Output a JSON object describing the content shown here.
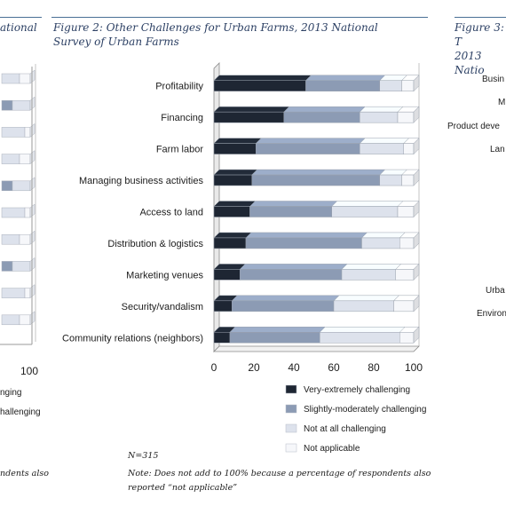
{
  "left_panel": {
    "title_fragment": "ational",
    "tick_label": "100",
    "legend_fragments": [
      "nging",
      "hallenging"
    ],
    "note_fragment": "ndents also"
  },
  "right_panel": {
    "title_line1": "Figure 3: T",
    "title_line2": "2013 Natio",
    "labels": [
      "Busin",
      "M",
      "Product deve",
      "Lan",
      "Urba",
      "Environ"
    ]
  },
  "figure2": {
    "title": "Figure 2: Other Challenges for Urban Farms, 2013 National Survey of Urban Farms"
  },
  "notes": {
    "n": "N=315",
    "note": "Note: Does not add to 100% because a percentage of respondents also reported “not applicable”"
  },
  "chart_data": {
    "type": "bar",
    "orientation": "horizontal",
    "stacked": true,
    "title": "Figure 2: Other Challenges for Urban Farms, 2013 National Survey of Urban Farms",
    "categories": [
      "Profitability",
      "Financing",
      "Farm labor",
      "Managing business activities",
      "Access to land",
      "Distribution & logistics",
      "Marketing venues",
      "Security/vandalism",
      "Community relations (neighbors)"
    ],
    "series": [
      {
        "name": "Very-extremely challenging",
        "color": "#1e2633",
        "values": [
          46,
          35,
          21,
          19,
          18,
          16,
          13,
          9,
          8
        ]
      },
      {
        "name": "Slightly-moderately challenging",
        "color": "#8c9bb4",
        "values": [
          37,
          38,
          52,
          64,
          41,
          58,
          51,
          51,
          45
        ]
      },
      {
        "name": "Not at all challenging",
        "color": "#dde2ec",
        "values": [
          11,
          19,
          22,
          11,
          33,
          19,
          27,
          30,
          40
        ]
      },
      {
        "name": "Not applicable",
        "color": "#f6f7fa",
        "values": [
          6,
          8,
          5,
          6,
          8,
          7,
          9,
          10,
          7
        ]
      }
    ],
    "xlim": [
      0,
      100
    ],
    "xticks": [
      0,
      20,
      40,
      60,
      80,
      100
    ],
    "grid": false,
    "legend_position": "bottom-right"
  }
}
